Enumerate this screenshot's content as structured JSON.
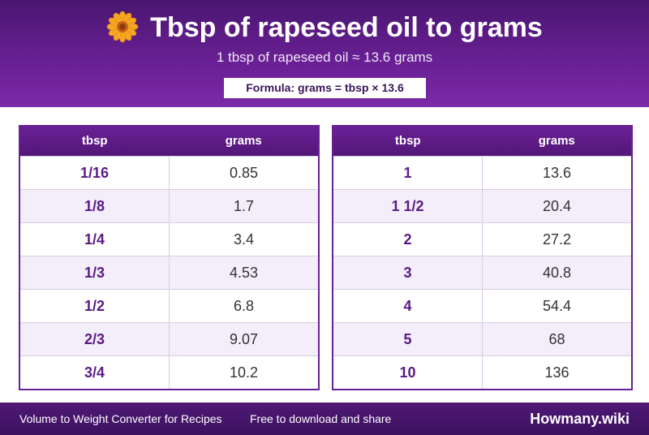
{
  "header": {
    "title": "Tbsp of rapeseed oil to grams",
    "subtitle": "1 tbsp of rapeseed oil ≈ 13.6 grams",
    "formula": "Formula: grams = tbsp × 13.6",
    "icon": "flower-icon",
    "colors": {
      "primary": "#6a2095",
      "dark": "#4a1670",
      "accent": "#f5a623"
    }
  },
  "tables": [
    {
      "headers": {
        "tbsp": "tbsp",
        "grams": "grams"
      },
      "rows": [
        {
          "tbsp": "1/16",
          "grams": "0.85"
        },
        {
          "tbsp": "1/8",
          "grams": "1.7"
        },
        {
          "tbsp": "1/4",
          "grams": "3.4"
        },
        {
          "tbsp": "1/3",
          "grams": "4.53"
        },
        {
          "tbsp": "1/2",
          "grams": "6.8"
        },
        {
          "tbsp": "2/3",
          "grams": "9.07"
        },
        {
          "tbsp": "3/4",
          "grams": "10.2"
        }
      ]
    },
    {
      "headers": {
        "tbsp": "tbsp",
        "grams": "grams"
      },
      "rows": [
        {
          "tbsp": "1",
          "grams": "13.6"
        },
        {
          "tbsp": "1 1/2",
          "grams": "20.4"
        },
        {
          "tbsp": "2",
          "grams": "27.2"
        },
        {
          "tbsp": "3",
          "grams": "40.8"
        },
        {
          "tbsp": "4",
          "grams": "54.4"
        },
        {
          "tbsp": "5",
          "grams": "68"
        },
        {
          "tbsp": "10",
          "grams": "136"
        }
      ]
    }
  ],
  "footer": {
    "left_text": "Volume to Weight Converter for Recipes",
    "middle_text": "Free to download and share",
    "brand": "Howmany.wiki"
  }
}
